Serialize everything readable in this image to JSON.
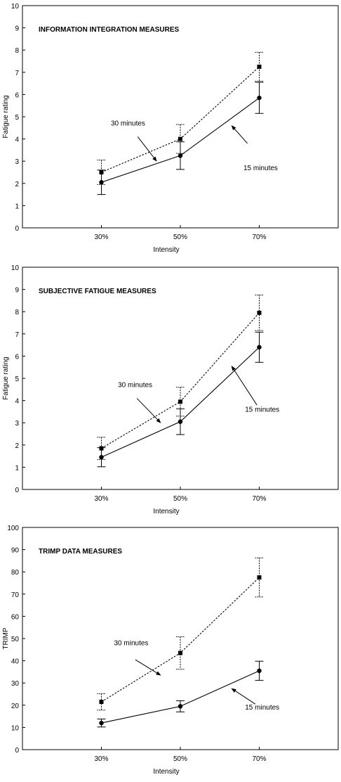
{
  "chart_data": [
    {
      "type": "line",
      "title": "INFORMATION INTEGRATION MEASURES",
      "xlabel": "Intensity",
      "ylabel": "Fatigue rating",
      "ylim": [
        0,
        10
      ],
      "yticks": [
        0,
        1,
        2,
        3,
        4,
        5,
        6,
        7,
        8,
        9,
        10
      ],
      "categories": [
        "30%",
        "50%",
        "70%"
      ],
      "grid": false,
      "series": [
        {
          "name": "30 minutes",
          "marker": "square",
          "line_style": "dashed",
          "values": [
            2.5,
            4.0,
            7.25
          ],
          "error": [
            0.55,
            0.65,
            0.65
          ]
        },
        {
          "name": "15 minutes",
          "marker": "circle",
          "line_style": "solid",
          "values": [
            2.05,
            3.25,
            5.85
          ],
          "error": [
            0.55,
            0.62,
            0.7
          ]
        }
      ],
      "annotations": [
        {
          "text": "30 minutes",
          "series": "30 minutes",
          "arrow_from": [
            1.46,
            4.1
          ],
          "arrow_to": [
            1.7,
            3.0
          ],
          "text_pos": [
            1.12,
            4.6
          ]
        },
        {
          "text": "15 minutes",
          "series": "15 minutes",
          "arrow_from": [
            2.85,
            3.8
          ],
          "arrow_to": [
            2.65,
            4.6
          ],
          "text_pos": [
            2.8,
            2.6
          ]
        }
      ]
    },
    {
      "type": "line",
      "title": "SUBJECTIVE FATIGUE MEASURES",
      "xlabel": "Intensity",
      "ylabel": "Fatigue rating",
      "ylim": [
        0,
        10
      ],
      "yticks": [
        0,
        1,
        2,
        3,
        4,
        5,
        6,
        7,
        8,
        9,
        10
      ],
      "categories": [
        "30%",
        "50%",
        "70%"
      ],
      "grid": false,
      "series": [
        {
          "name": "30 minutes",
          "marker": "square",
          "line_style": "dashed",
          "values": [
            1.85,
            3.95,
            7.95
          ],
          "error": [
            0.5,
            0.65,
            0.8
          ]
        },
        {
          "name": "15 minutes",
          "marker": "circle",
          "line_style": "solid",
          "values": [
            1.45,
            3.05,
            6.4
          ],
          "error": [
            0.43,
            0.58,
            0.68
          ]
        }
      ],
      "annotations": [
        {
          "text": "30 minutes",
          "series": "30 minutes",
          "arrow_from": [
            1.45,
            4.1
          ],
          "arrow_to": [
            1.75,
            3.0
          ],
          "text_pos": [
            1.21,
            4.6
          ]
        },
        {
          "text": "15 minutes",
          "series": "15 minutes",
          "arrow_from": [
            2.97,
            3.8
          ],
          "arrow_to": [
            2.65,
            5.55
          ],
          "text_pos": [
            2.82,
            3.5
          ]
        }
      ]
    },
    {
      "type": "line",
      "title": "TRIMP DATA MEASURES",
      "xlabel": "Intensity",
      "ylabel": "TRIMP",
      "ylim": [
        0,
        100
      ],
      "yticks": [
        0,
        10,
        20,
        30,
        40,
        50,
        60,
        70,
        80,
        90,
        100
      ],
      "categories": [
        "30%",
        "50%",
        "70%"
      ],
      "grid": false,
      "series": [
        {
          "name": "30 minutes",
          "marker": "square",
          "line_style": "dashed",
          "values": [
            21.5,
            43.5,
            77.5
          ],
          "error": [
            3.7,
            7.3,
            8.8
          ]
        },
        {
          "name": "15 minutes",
          "marker": "circle",
          "line_style": "solid",
          "values": [
            12,
            19.5,
            35.5
          ],
          "error": [
            1.8,
            2.5,
            4.3
          ]
        }
      ],
      "annotations": [
        {
          "text": "30 minutes",
          "series": "30 minutes",
          "arrow_from": [
            1.43,
            40.5
          ],
          "arrow_to": [
            1.75,
            33.5
          ],
          "text_pos": [
            1.16,
            47.0
          ]
        },
        {
          "text": "15 minutes",
          "series": "15 minutes",
          "arrow_from": [
            2.95,
            20.5
          ],
          "arrow_to": [
            2.65,
            27.5
          ],
          "text_pos": [
            2.82,
            18.0
          ]
        }
      ]
    }
  ]
}
